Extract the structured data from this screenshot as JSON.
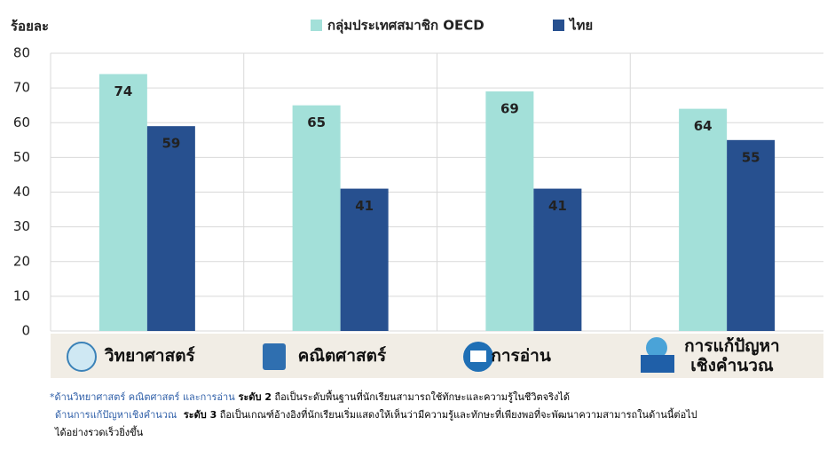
{
  "chart_data": {
    "type": "bar",
    "y_label": "ร้อยละ",
    "categories": [
      "วิทยาศาสตร์",
      "คณิตศาสตร์",
      "การอ่าน",
      "การแก้ปัญหา\nเชิงคำนวณ"
    ],
    "series": [
      {
        "name": "กลุ่มประเทศสมาชิก OECD",
        "color": "#a3e0d9",
        "values": [
          74,
          65,
          69,
          64
        ]
      },
      {
        "name": "ไทย",
        "color": "#27508f",
        "values": [
          59,
          41,
          41,
          55
        ]
      }
    ],
    "ylim": [
      0,
      80
    ],
    "yticks": [
      0,
      10,
      20,
      30,
      40,
      50,
      60,
      70,
      80
    ],
    "grid": true
  },
  "footnote": {
    "lines": [
      [
        {
          "text": "*ด้านวิทยาศาสตร์ คณิตศาสตร์ และการอ่าน",
          "style": "highlight"
        },
        {
          "text": " ระดับ 2",
          "style": "bold"
        },
        {
          "text": " ถือเป็นระดับพื้นฐานที่นักเรียนสามารถใช้ทักษะและความรู้ในชีวิตจริงได้",
          "style": "normal"
        }
      ],
      [
        {
          "text": "ด้านการแก้ปัญหาเชิงคำนวณ",
          "style": "highlight"
        },
        {
          "text": "  ระดับ 3",
          "style": "bold"
        },
        {
          "text": " ถือเป็นเกณฑ์อ้างอิงที่นักเรียนเริ่มแสดงให้เห็นว่ามีความรู้และทักษะที่เพียงพอที่จะพัฒนาความสามารถในด้านนี้ต่อไป",
          "style": "normal"
        }
      ],
      [
        {
          "text": "ได้อย่างรวดเร็วยิ่งขึ้น",
          "style": "normal"
        }
      ]
    ]
  }
}
